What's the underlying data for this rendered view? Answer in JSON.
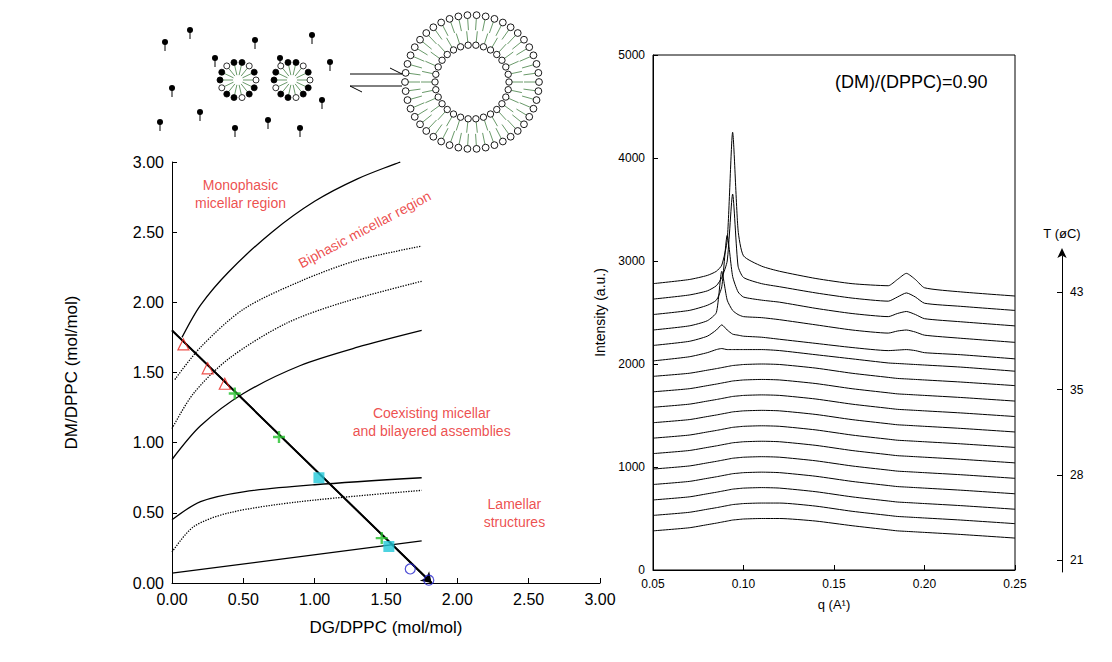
{
  "chart_data": [
    {
      "type": "line",
      "xlabel": "DG/DPPC (mol/mol)",
      "ylabel": "DM/DPPC (mol/mol)",
      "xlim": [
        0,
        3
      ],
      "ylim": [
        0,
        3
      ],
      "xticks": [
        {
          "value": 0,
          "label": "0.00"
        },
        {
          "value": 0.5,
          "label": "0.50"
        },
        {
          "value": 1,
          "label": "1.00"
        },
        {
          "value": 1.5,
          "label": "1.50"
        },
        {
          "value": 2,
          "label": "2.00"
        },
        {
          "value": 2.5,
          "label": "2.50"
        },
        {
          "value": 3,
          "label": "3.00"
        }
      ],
      "yticks": [
        {
          "value": 0,
          "label": "0.00"
        },
        {
          "value": 0.5,
          "label": "0.50"
        },
        {
          "value": 1,
          "label": "1.00"
        },
        {
          "value": 1.5,
          "label": "1.50"
        },
        {
          "value": 2,
          "label": "2.00"
        },
        {
          "value": 2.5,
          "label": "2.50"
        },
        {
          "value": 3,
          "label": "3.00"
        }
      ],
      "grid": false,
      "series": [
        {
          "type": "line",
          "color": "#000000",
          "line_style": "solid",
          "x": [
            0.07,
            0.2,
            0.4,
            0.7,
            1.0,
            1.3,
            1.6
          ],
          "values": [
            1.75,
            1.98,
            2.22,
            2.5,
            2.72,
            2.88,
            3.0
          ]
        },
        {
          "type": "line",
          "color": "#000000",
          "line_style": "dotted",
          "x": [
            0.02,
            0.2,
            0.5,
            0.9,
            1.3,
            1.75
          ],
          "values": [
            1.45,
            1.68,
            1.95,
            2.15,
            2.3,
            2.4
          ]
        },
        {
          "type": "line",
          "color": "#000000",
          "line_style": "dotted",
          "x": [
            0,
            0.15,
            0.4,
            0.8,
            1.2,
            1.75
          ],
          "values": [
            1.1,
            1.35,
            1.6,
            1.85,
            2.0,
            2.15
          ]
        },
        {
          "type": "line",
          "color": "#000000",
          "line_style": "solid",
          "x": [
            0,
            0.2,
            0.5,
            0.9,
            1.3,
            1.75
          ],
          "values": [
            0.88,
            1.12,
            1.35,
            1.55,
            1.68,
            1.8
          ]
        },
        {
          "type": "line",
          "color": "#000000",
          "line_style": "solid",
          "x": [
            0,
            0.2,
            0.5,
            1.0,
            1.75
          ],
          "values": [
            0.45,
            0.58,
            0.65,
            0.7,
            0.75
          ]
        },
        {
          "type": "line",
          "color": "#000000",
          "line_style": "dotted",
          "x": [
            0,
            0.15,
            0.4,
            0.9,
            1.75
          ],
          "values": [
            0.22,
            0.4,
            0.5,
            0.58,
            0.66
          ]
        },
        {
          "type": "line",
          "color": "#000000",
          "line_style": "solid",
          "x": [
            0,
            1.75
          ],
          "values": [
            0.07,
            0.3
          ]
        },
        {
          "type": "line",
          "color": "#000000",
          "line_style": "solid",
          "marker": "arrow",
          "x": [
            0,
            1.82
          ],
          "values": [
            1.8,
            0.0
          ]
        },
        {
          "type": "scatter",
          "color": "#e8231d",
          "marker": "triangle-open",
          "x": [
            0.08,
            0.25,
            0.37
          ],
          "values": [
            1.7,
            1.53,
            1.42
          ]
        },
        {
          "type": "scatter",
          "color": "#22c02a",
          "marker": "plus",
          "x": [
            0.44,
            0.75,
            1.47
          ],
          "values": [
            1.35,
            1.04,
            0.32
          ]
        },
        {
          "type": "scatter",
          "color": "#22c8d8",
          "marker": "square",
          "x": [
            1.03,
            1.52
          ],
          "values": [
            0.75,
            0.26
          ]
        },
        {
          "type": "scatter",
          "color": "#2222cc",
          "marker": "circle-open",
          "x": [
            1.67,
            1.8
          ],
          "values": [
            0.1,
            0.02
          ]
        }
      ],
      "annotations": [
        {
          "text": "Monophasic\nmicellar region",
          "x": 0.48,
          "y": 2.77,
          "color": "#e8231d"
        },
        {
          "text": "Biphasic micellar region",
          "x": 1.35,
          "y": 2.52,
          "color": "#e8231d"
        },
        {
          "text": "Coexisting micellar\nand bilayered assemblies",
          "x": 1.82,
          "y": 1.15,
          "color": "#e8231d"
        },
        {
          "text": "Lamellar\nstructures",
          "x": 2.4,
          "y": 0.5,
          "color": "#e8231d"
        }
      ]
    },
    {
      "type": "line",
      "title": "(DM)/(DPPC)=0.90",
      "xlabel": "q (A¹)",
      "ylabel": "Intensity (a.u.)",
      "y2label": "T (øC)",
      "xlim": [
        0.05,
        0.25
      ],
      "ylim": [
        0,
        5000
      ],
      "xticks": [
        0.05,
        {
          "value": 0.1,
          "label": "0.10"
        },
        0.15,
        {
          "value": 0.2,
          "label": "0.20"
        },
        0.25
      ],
      "yticks": [
        0,
        1000,
        2000,
        3000,
        4000,
        5000
      ],
      "y2lim": [
        20,
        46
      ],
      "y2ticks": [
        21,
        28,
        35,
        43
      ],
      "grid": false,
      "color": "#000000",
      "x": [
        0.05,
        0.07,
        0.08,
        0.085,
        0.088,
        0.091,
        0.094,
        0.097,
        0.1,
        0.11,
        0.12,
        0.14,
        0.16,
        0.18,
        0.185,
        0.19,
        0.195,
        0.2,
        0.22,
        0.25
      ],
      "series": [
        {
          "values": [
            2780,
            2820,
            2860,
            2900,
            2960,
            3200,
            4250,
            3300,
            3050,
            2950,
            2900,
            2830,
            2780,
            2760,
            2820,
            2880,
            2820,
            2740,
            2700,
            2660
          ]
        },
        {
          "values": [
            2630,
            2670,
            2710,
            2760,
            2840,
            3000,
            3650,
            2950,
            2840,
            2780,
            2750,
            2690,
            2640,
            2610,
            2650,
            2690,
            2650,
            2590,
            2560,
            2520
          ]
        },
        {
          "values": [
            2480,
            2520,
            2570,
            2620,
            2750,
            3250,
            2850,
            2700,
            2650,
            2620,
            2600,
            2540,
            2490,
            2460,
            2490,
            2510,
            2480,
            2440,
            2410,
            2370
          ]
        },
        {
          "values": [
            2330,
            2370,
            2420,
            2500,
            2900,
            2620,
            2520,
            2480,
            2460,
            2450,
            2430,
            2380,
            2330,
            2300,
            2320,
            2330,
            2310,
            2280,
            2250,
            2210
          ]
        },
        {
          "values": [
            2180,
            2220,
            2270,
            2330,
            2380,
            2330,
            2290,
            2280,
            2270,
            2260,
            2240,
            2200,
            2160,
            2130,
            2135,
            2140,
            2130,
            2110,
            2090,
            2050
          ]
        },
        {
          "values": [
            2030,
            2070,
            2110,
            2140,
            2150,
            2140,
            2140,
            2140,
            2140,
            2140,
            2130,
            2090,
            2050,
            2010,
            2005,
            2000,
            1995,
            1990,
            1970,
            1930
          ]
        },
        {
          "values": [
            1880,
            1910,
            1940,
            1955,
            1965,
            1975,
            1985,
            1990,
            1995,
            2000,
            1995,
            1960,
            1910,
            1870,
            1860,
            1855,
            1850,
            1845,
            1825,
            1790
          ]
        },
        {
          "values": [
            1730,
            1760,
            1790,
            1805,
            1815,
            1825,
            1835,
            1840,
            1845,
            1850,
            1845,
            1810,
            1760,
            1720,
            1710,
            1705,
            1700,
            1695,
            1675,
            1640
          ]
        },
        {
          "values": [
            1580,
            1610,
            1640,
            1655,
            1665,
            1675,
            1685,
            1690,
            1695,
            1700,
            1695,
            1660,
            1610,
            1570,
            1560,
            1555,
            1550,
            1545,
            1525,
            1490
          ]
        },
        {
          "values": [
            1430,
            1460,
            1490,
            1505,
            1515,
            1525,
            1535,
            1540,
            1545,
            1550,
            1545,
            1510,
            1460,
            1420,
            1410,
            1405,
            1400,
            1395,
            1375,
            1340
          ]
        },
        {
          "values": [
            1280,
            1310,
            1340,
            1355,
            1365,
            1375,
            1385,
            1390,
            1395,
            1400,
            1395,
            1360,
            1310,
            1270,
            1260,
            1255,
            1250,
            1245,
            1225,
            1190
          ]
        },
        {
          "values": [
            1130,
            1160,
            1190,
            1205,
            1215,
            1225,
            1235,
            1240,
            1245,
            1250,
            1245,
            1210,
            1160,
            1120,
            1110,
            1105,
            1100,
            1095,
            1075,
            1040
          ]
        },
        {
          "values": [
            980,
            1010,
            1040,
            1055,
            1065,
            1075,
            1085,
            1090,
            1095,
            1100,
            1095,
            1060,
            1010,
            970,
            960,
            955,
            950,
            945,
            925,
            890
          ]
        },
        {
          "values": [
            830,
            860,
            890,
            905,
            915,
            925,
            935,
            940,
            945,
            950,
            945,
            910,
            860,
            820,
            810,
            805,
            800,
            795,
            775,
            740
          ]
        },
        {
          "values": [
            680,
            710,
            740,
            755,
            765,
            775,
            785,
            790,
            795,
            800,
            795,
            760,
            710,
            670,
            660,
            655,
            650,
            645,
            625,
            590
          ]
        },
        {
          "values": [
            530,
            560,
            590,
            605,
            615,
            625,
            635,
            640,
            645,
            650,
            650,
            620,
            570,
            530,
            520,
            515,
            510,
            505,
            485,
            450
          ]
        },
        {
          "values": [
            380,
            410,
            440,
            455,
            465,
            475,
            485,
            490,
            495,
            500,
            500,
            475,
            430,
            390,
            380,
            375,
            370,
            365,
            345,
            310
          ]
        }
      ]
    }
  ]
}
